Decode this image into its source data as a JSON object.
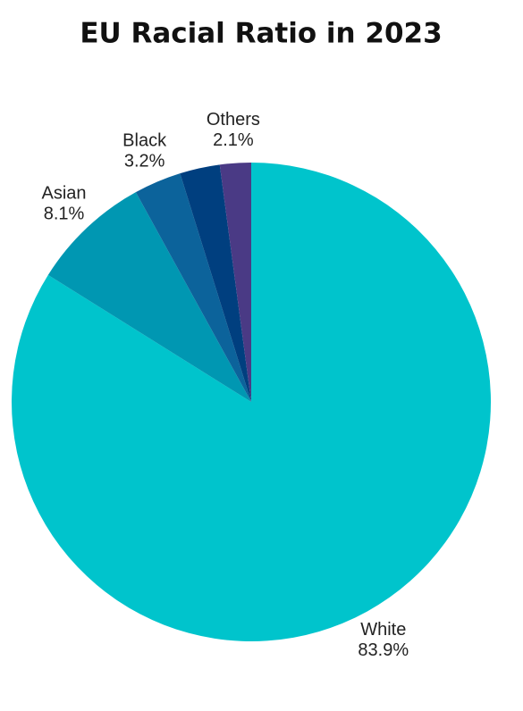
{
  "chart_data": {
    "type": "pie",
    "title": "EU Racial Ratio in 2023",
    "categories": [
      "White",
      "Asian",
      "Black",
      null,
      "Others"
    ],
    "values": [
      83.9,
      8.1,
      3.2,
      2.7,
      2.1
    ],
    "value_labels": [
      "83.9%",
      "8.1%",
      "3.2%",
      null,
      "2.1%"
    ],
    "colors": [
      "#00c4cc",
      "#0097b2",
      "#0c639b",
      "#003f7f",
      "#4a3a85"
    ]
  }
}
